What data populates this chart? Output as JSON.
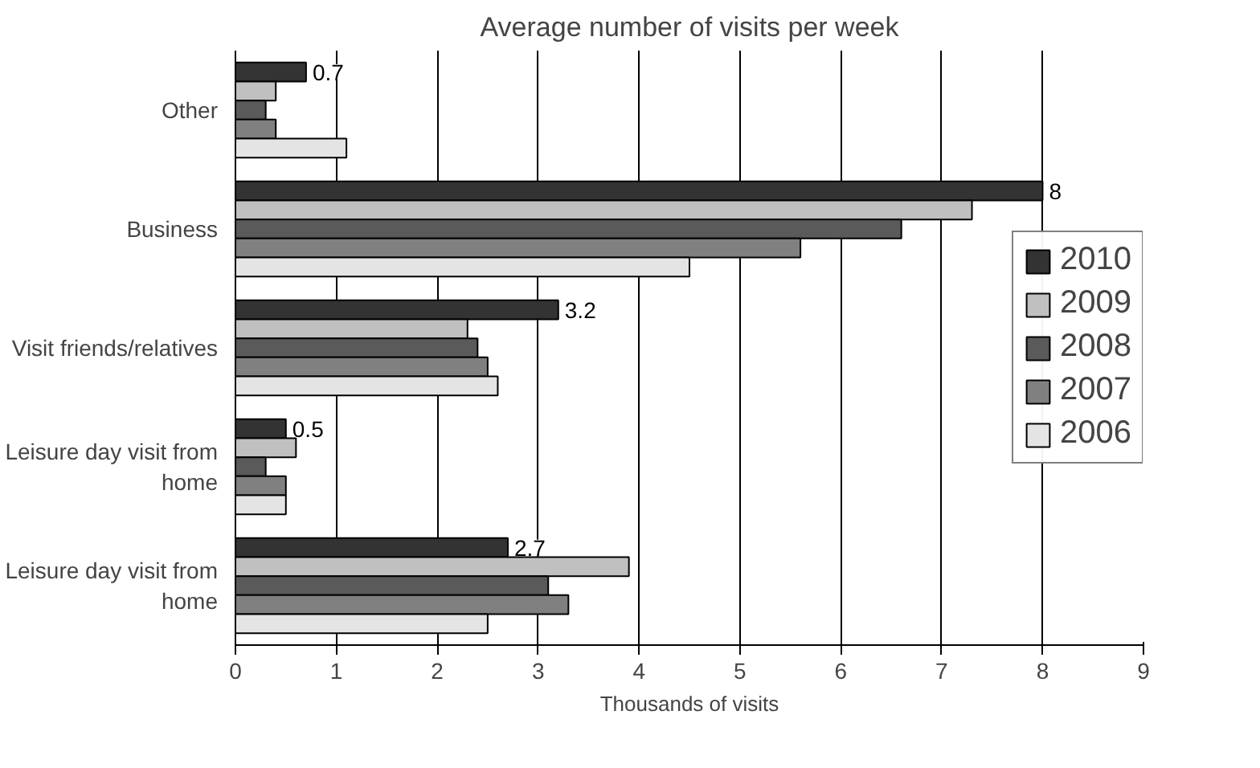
{
  "chart_data": {
    "type": "bar",
    "orientation": "horizontal",
    "title": "Average number of visits per week",
    "xlabel": "Thousands of visits",
    "categories": [
      "Other",
      "Business",
      "Visit friends/relatives",
      "Leisure day visit from home",
      "Leisure day visit from home"
    ],
    "series": [
      {
        "name": "2010",
        "color": "#333333",
        "values": [
          0.7,
          8,
          3.2,
          0.5,
          2.7
        ],
        "value_labels": [
          "0.7",
          "8",
          "3.2",
          "0.5",
          "2.7"
        ]
      },
      {
        "name": "2009",
        "color": "#c0c0c0",
        "values": [
          0.4,
          7.3,
          2.3,
          0.6,
          3.9
        ]
      },
      {
        "name": "2008",
        "color": "#5a5a5a",
        "values": [
          0.3,
          6.6,
          2.4,
          0.3,
          3.1
        ]
      },
      {
        "name": "2007",
        "color": "#808080",
        "values": [
          0.4,
          5.6,
          2.5,
          0.5,
          3.3
        ]
      },
      {
        "name": "2006",
        "color": "#e4e4e4",
        "values": [
          1.1,
          4.5,
          2.6,
          0.5,
          2.5
        ]
      }
    ],
    "xlim": [
      0,
      9
    ],
    "xticks": [
      0,
      1,
      2,
      3,
      4,
      5,
      6,
      7,
      8,
      9
    ],
    "grid": "x",
    "legend": "right"
  }
}
